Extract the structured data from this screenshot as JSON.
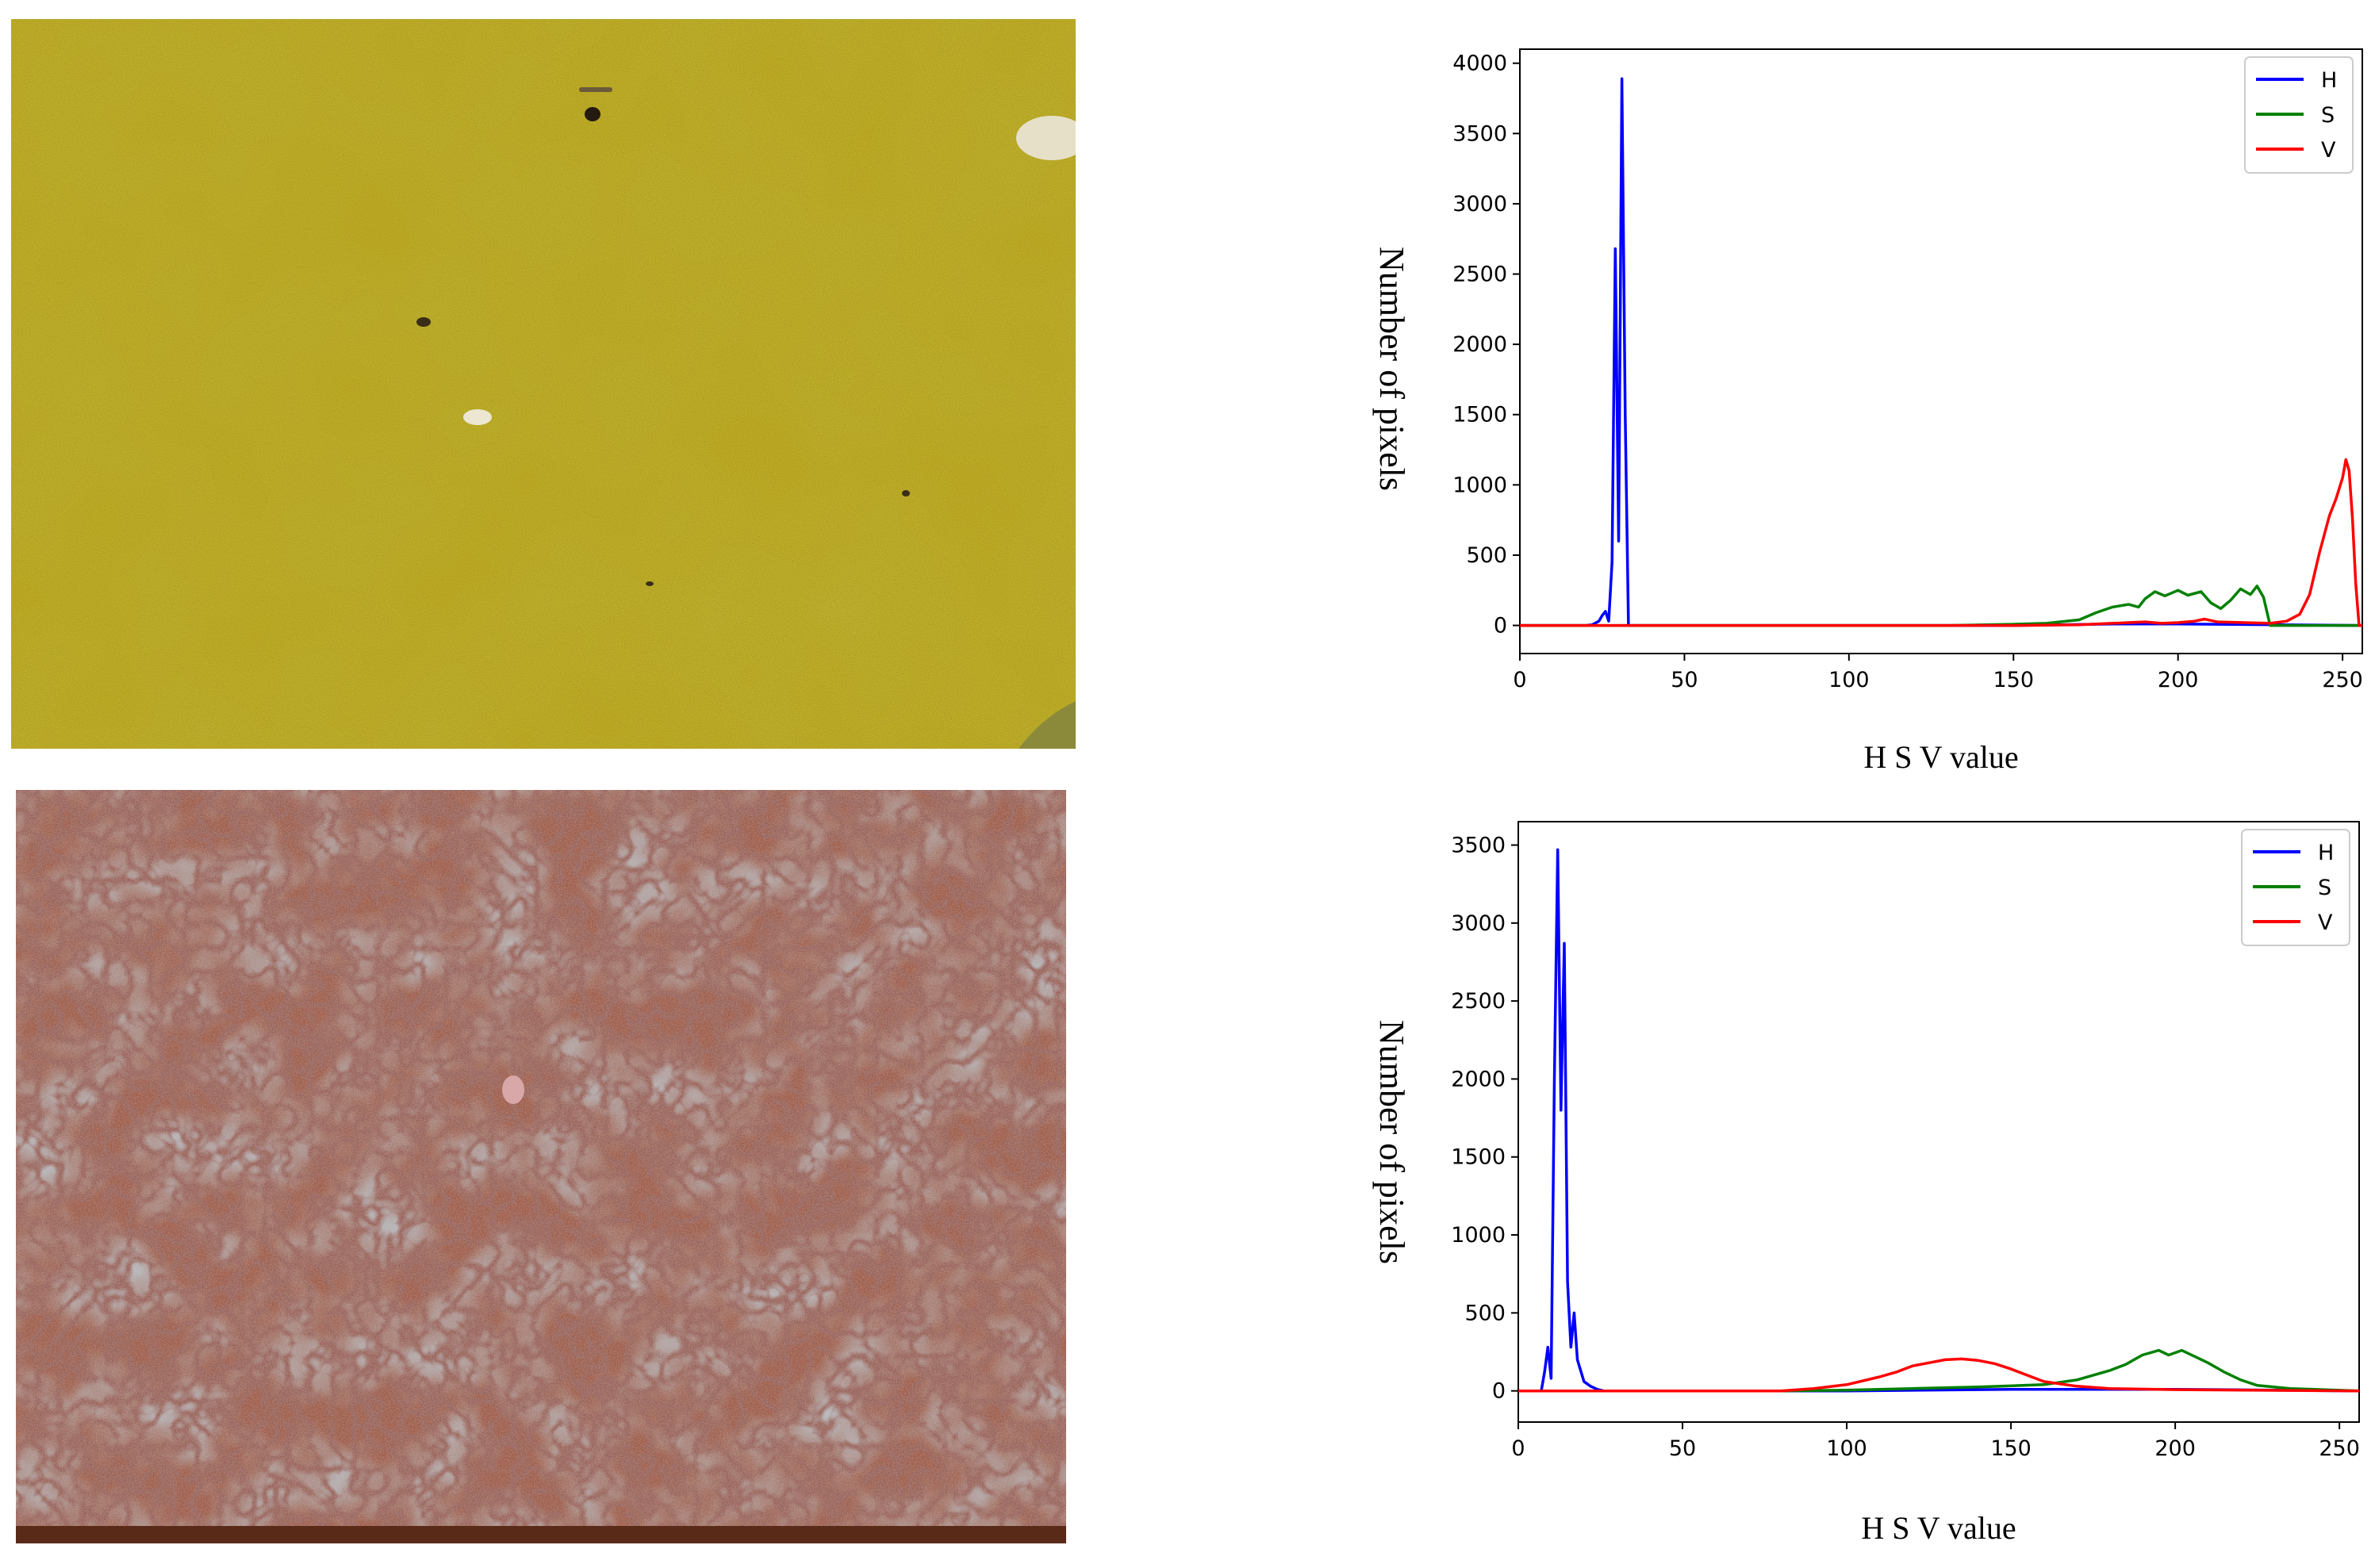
{
  "charts": [
    {
      "id": "top",
      "chart_data": {
        "type": "line",
        "xlabel": "H S V value",
        "ylabel": "Number of pixels",
        "xlim": [
          0,
          256
        ],
        "ylim": [
          -200,
          4100
        ],
        "xticks": [
          0,
          50,
          100,
          150,
          200,
          250
        ],
        "yticks": [
          0,
          500,
          1000,
          1500,
          2000,
          2500,
          3000,
          3500,
          4000
        ],
        "grid": false,
        "legend_position": "top-right",
        "series": [
          {
            "name": "H",
            "color": "#0000ff",
            "points": [
              [
                0,
                0
              ],
              [
                20,
                0
              ],
              [
                22,
                5
              ],
              [
                24,
                30
              ],
              [
                25,
                70
              ],
              [
                26,
                100
              ],
              [
                27,
                30
              ],
              [
                28,
                450
              ],
              [
                29,
                2680
              ],
              [
                30,
                600
              ],
              [
                31,
                3890
              ],
              [
                32,
                1500
              ],
              [
                33,
                0
              ],
              [
                40,
                0
              ],
              [
                100,
                0
              ],
              [
                150,
                0
              ],
              [
                180,
                10
              ],
              [
                200,
                10
              ],
              [
                256,
                0
              ]
            ]
          },
          {
            "name": "S",
            "color": "#008000",
            "points": [
              [
                0,
                0
              ],
              [
                130,
                0
              ],
              [
                150,
                8
              ],
              [
                160,
                15
              ],
              [
                170,
                40
              ],
              [
                175,
                90
              ],
              [
                180,
                130
              ],
              [
                185,
                150
              ],
              [
                188,
                130
              ],
              [
                190,
                190
              ],
              [
                193,
                240
              ],
              [
                196,
                210
              ],
              [
                200,
                250
              ],
              [
                203,
                215
              ],
              [
                207,
                240
              ],
              [
                210,
                160
              ],
              [
                213,
                120
              ],
              [
                216,
                180
              ],
              [
                219,
                260
              ],
              [
                222,
                220
              ],
              [
                224,
                280
              ],
              [
                226,
                200
              ],
              [
                228,
                0
              ],
              [
                256,
                0
              ]
            ]
          },
          {
            "name": "V",
            "color": "#ff0000",
            "points": [
              [
                0,
                0
              ],
              [
                150,
                0
              ],
              [
                170,
                5
              ],
              [
                180,
                15
              ],
              [
                185,
                20
              ],
              [
                190,
                25
              ],
              [
                195,
                15
              ],
              [
                200,
                20
              ],
              [
                205,
                30
              ],
              [
                208,
                45
              ],
              [
                212,
                25
              ],
              [
                220,
                20
              ],
              [
                228,
                15
              ],
              [
                233,
                30
              ],
              [
                237,
                80
              ],
              [
                240,
                220
              ],
              [
                243,
                520
              ],
              [
                246,
                780
              ],
              [
                248,
                900
              ],
              [
                250,
                1050
              ],
              [
                251,
                1180
              ],
              [
                252,
                1100
              ],
              [
                253,
                760
              ],
              [
                254,
                300
              ],
              [
                255,
                0
              ],
              [
                256,
                0
              ]
            ]
          }
        ]
      }
    },
    {
      "id": "bottom",
      "chart_data": {
        "type": "line",
        "xlabel": "H S V value",
        "ylabel": "Number of pixels",
        "xlim": [
          0,
          256
        ],
        "ylim": [
          -200,
          3650
        ],
        "xticks": [
          0,
          50,
          100,
          150,
          200,
          250
        ],
        "yticks": [
          0,
          500,
          1000,
          1500,
          2000,
          2500,
          3000,
          3500
        ],
        "grid": false,
        "legend_position": "top-right",
        "series": [
          {
            "name": "H",
            "color": "#0000ff",
            "points": [
              [
                0,
                0
              ],
              [
                7,
                0
              ],
              [
                8,
                120
              ],
              [
                9,
                280
              ],
              [
                10,
                80
              ],
              [
                11,
                2000
              ],
              [
                12,
                3470
              ],
              [
                13,
                1800
              ],
              [
                14,
                2870
              ],
              [
                15,
                700
              ],
              [
                16,
                280
              ],
              [
                17,
                500
              ],
              [
                18,
                200
              ],
              [
                20,
                60
              ],
              [
                22,
                30
              ],
              [
                24,
                10
              ],
              [
                26,
                0
              ],
              [
                100,
                0
              ],
              [
                150,
                10
              ],
              [
                200,
                10
              ],
              [
                256,
                0
              ]
            ]
          },
          {
            "name": "S",
            "color": "#008000",
            "points": [
              [
                0,
                0
              ],
              [
                80,
                0
              ],
              [
                100,
                5
              ],
              [
                120,
                15
              ],
              [
                140,
                25
              ],
              [
                160,
                40
              ],
              [
                170,
                70
              ],
              [
                180,
                130
              ],
              [
                185,
                170
              ],
              [
                190,
                230
              ],
              [
                195,
                260
              ],
              [
                198,
                230
              ],
              [
                202,
                260
              ],
              [
                206,
                220
              ],
              [
                210,
                180
              ],
              [
                215,
                120
              ],
              [
                220,
                70
              ],
              [
                225,
                35
              ],
              [
                235,
                15
              ],
              [
                256,
                0
              ]
            ]
          },
          {
            "name": "V",
            "color": "#ff0000",
            "points": [
              [
                0,
                0
              ],
              [
                80,
                0
              ],
              [
                90,
                15
              ],
              [
                100,
                40
              ],
              [
                110,
                90
              ],
              [
                115,
                120
              ],
              [
                120,
                160
              ],
              [
                125,
                180
              ],
              [
                130,
                200
              ],
              [
                135,
                205
              ],
              [
                140,
                195
              ],
              [
                145,
                175
              ],
              [
                150,
                140
              ],
              [
                155,
                100
              ],
              [
                160,
                60
              ],
              [
                170,
                30
              ],
              [
                180,
                15
              ],
              [
                200,
                8
              ],
              [
                256,
                0
              ]
            ]
          }
        ]
      }
    }
  ]
}
